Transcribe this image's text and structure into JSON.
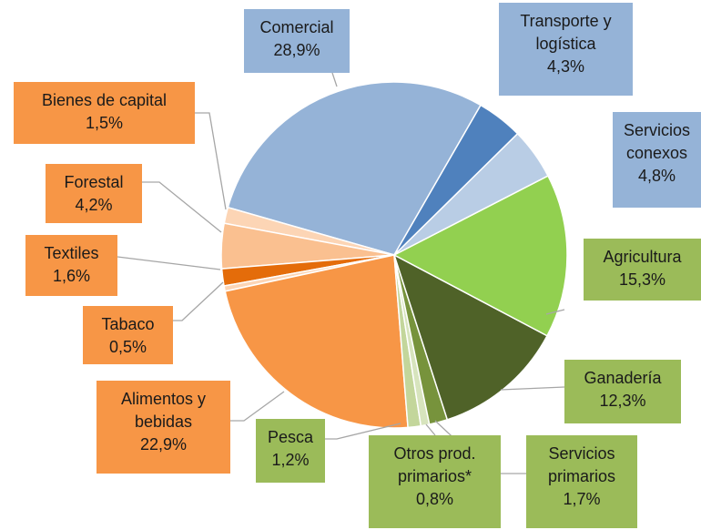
{
  "chart_data": {
    "type": "pie",
    "categories": [
      "Transporte y logística",
      "Servicios conexos",
      "Agricultura",
      "Ganadería",
      "Servicios primarios",
      "Otros prod. primarios*",
      "Pesca",
      "Alimentos y bebidas",
      "Tabaco",
      "Textiles",
      "Forestal",
      "Bienes de capital",
      "Comercial"
    ],
    "values": [
      4.3,
      4.8,
      15.3,
      12.3,
      1.7,
      0.8,
      1.2,
      22.9,
      0.5,
      1.6,
      4.2,
      1.5,
      28.9
    ],
    "value_labels": [
      "4,3%",
      "4,8%",
      "15,3%",
      "12,3%",
      "1,7%",
      "0,8%",
      "1,2%",
      "22,9%",
      "0,5%",
      "1,6%",
      "4,2%",
      "1,5%",
      "28,9%"
    ],
    "colors": [
      "#4f81bd",
      "#b9cde5",
      "#92d050",
      "#4f6228",
      "#77933c",
      "#d7e4bd",
      "#c3d69b",
      "#f79646",
      "#fcd5b5",
      "#e46c0a",
      "#fac090",
      "#fcd5b5",
      "#95b3d7"
    ],
    "label_colors": [
      "#95b3d7",
      "#95b3d7",
      "#9bbb59",
      "#9bbb59",
      "#9bbb59",
      "#9bbb59",
      "#9bbb59",
      "#f79646",
      "#f79646",
      "#f79646",
      "#f79646",
      "#f79646",
      "#95b3d7"
    ]
  }
}
